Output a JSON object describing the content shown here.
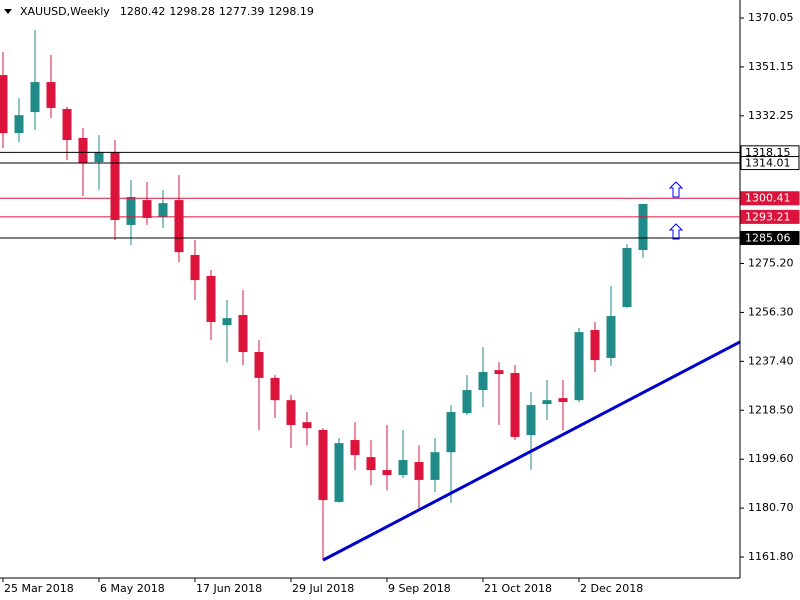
{
  "chart_data": {
    "type": "candlestick",
    "header": {
      "symbol": "XAUUSD,Weekly",
      "values": [
        1280.42,
        1298.28,
        1277.39,
        1298.19
      ]
    },
    "categories": [
      "25 Mar 2018",
      null,
      null,
      null,
      null,
      null,
      "6 May 2018",
      null,
      null,
      null,
      null,
      null,
      "17 Jun 2018",
      null,
      null,
      null,
      null,
      null,
      "29 Jul 2018",
      null,
      null,
      null,
      null,
      null,
      "9 Sep 2018",
      null,
      null,
      null,
      null,
      null,
      "21 Oct 2018",
      null,
      null,
      null,
      null,
      null,
      "2 Dec 2018",
      null,
      null,
      null,
      null
    ],
    "open": [
      1348.0,
      1325.6,
      1333.7,
      1345.3,
      1334.9,
      1323.7,
      1314.4,
      1318.3,
      1290.1,
      1299.7,
      1293.2,
      1299.7,
      1278.5,
      1270.4,
      1251.4,
      1255.3,
      1241.0,
      1231.0,
      1222.4,
      1213.9,
      1210.9,
      1183.1,
      1207.0,
      1200.4,
      1195.4,
      1193.5,
      1198.5,
      1191.6,
      1202.3,
      1217.4,
      1226.3,
      1234.0,
      1232.9,
      1208.9,
      1220.9,
      1223.2,
      1222.4,
      1249.5,
      1238.7,
      1258.4,
      1280.42
    ],
    "high": [
      1356.9,
      1339.1,
      1365.4,
      1355.8,
      1335.7,
      1327.6,
      1324.8,
      1322.9,
      1307.5,
      1306.7,
      1303.6,
      1309.4,
      1284.3,
      1272.7,
      1261.1,
      1264.9,
      1245.6,
      1232.1,
      1224.4,
      1217.8,
      1211.6,
      1207.8,
      1213.9,
      1207.0,
      1212.8,
      1210.9,
      1205.0,
      1207.8,
      1220.5,
      1232.1,
      1242.9,
      1237.1,
      1236.0,
      1225.5,
      1230.2,
      1230.2,
      1250.3,
      1252.6,
      1266.5,
      1282.7,
      1298.28
    ],
    "low": [
      1319.8,
      1322.1,
      1326.8,
      1331.4,
      1315.2,
      1301.3,
      1303.6,
      1284.3,
      1282.3,
      1290.1,
      1288.9,
      1275.7,
      1261.1,
      1245.6,
      1237.1,
      1236.0,
      1210.9,
      1215.5,
      1203.9,
      1204.9,
      1160.6,
      1182.7,
      1195.4,
      1189.6,
      1187.6,
      1192.3,
      1180.7,
      1186.9,
      1182.7,
      1216.6,
      1219.7,
      1212.8,
      1207.0,
      1195.4,
      1214.7,
      1210.9,
      1221.7,
      1233.3,
      1235.6,
      1258.0,
      1277.39
    ],
    "close": [
      1325.6,
      1332.5,
      1345.3,
      1335.3,
      1322.9,
      1314.0,
      1318.3,
      1292.0,
      1300.9,
      1292.8,
      1298.5,
      1279.6,
      1268.8,
      1252.6,
      1254.1,
      1241.0,
      1231.0,
      1222.4,
      1212.8,
      1211.6,
      1183.8,
      1205.8,
      1201.2,
      1195.4,
      1193.5,
      1199.3,
      1191.6,
      1202.3,
      1217.8,
      1226.3,
      1233.3,
      1232.5,
      1208.2,
      1220.5,
      1222.4,
      1221.7,
      1248.7,
      1237.9,
      1254.9,
      1281.2,
      1298.19
    ],
    "up_color": "#1f8a87",
    "down_color": "#dc143c",
    "ylim": [
      1153.7,
      1377.0
    ],
    "yticks": [
      1370.05,
      1351.15,
      1332.25,
      {
        "value": 1275.2,
        "label": "1275.20"
      },
      {
        "value": 1256.3,
        "label": "1256.30"
      },
      {
        "value": 1237.4,
        "label": "1237.40"
      },
      {
        "value": 1218.5,
        "label": "1218.50"
      },
      {
        "value": 1199.6,
        "label": "1199.60"
      },
      {
        "value": 1180.7,
        "label": "1180.70"
      },
      {
        "value": 1161.8,
        "label": "1161.80"
      }
    ],
    "levels": [
      {
        "value": 1318.15,
        "color": "#000000",
        "label_fill": "#ffffff"
      },
      {
        "value": 1314.01,
        "color": "#000000",
        "label_fill": "#ffffff"
      },
      {
        "value": 1300.41,
        "color": "#dc143c",
        "label_fill": "#dc143c"
      },
      {
        "value": 1293.21,
        "color": "#dc143c",
        "label_fill": "#dc143c"
      },
      {
        "value": 1285.06,
        "color": "#000000",
        "label_fill": "#000000"
      }
    ],
    "trendline": {
      "x": [
        20,
        46.06
      ],
      "y": [
        1160.6,
        1244.9
      ],
      "color": "#0000cc"
    }
  }
}
